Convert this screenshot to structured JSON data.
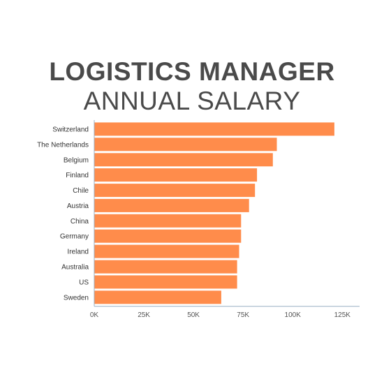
{
  "title": "LOGISTICS MANAGER",
  "subtitle": "ANNUAL SALARY",
  "colors": {
    "bar": "#FF8C4B",
    "axis": "#9ab0c4",
    "title": "#4a4a4a"
  },
  "chart_data": {
    "type": "bar",
    "orientation": "horizontal",
    "title": "LOGISTICS MANAGER ANNUAL SALARY",
    "categories": [
      "Switzerland",
      "The Netherlands",
      "Belgium",
      "Finland",
      "Chile",
      "Austria",
      "China",
      "Germany",
      "Ireland",
      "Australia",
      "US",
      "Sweden"
    ],
    "values": [
      121000,
      92000,
      90000,
      82000,
      81000,
      78000,
      74000,
      74000,
      73000,
      72000,
      72000,
      64000
    ],
    "xlim": [
      0,
      133000
    ],
    "xticks": [
      0,
      25000,
      50000,
      75000,
      100000,
      125000
    ],
    "xtick_labels": [
      "0K",
      "25K",
      "50K",
      "75K",
      "100K",
      "125K"
    ],
    "xlabel": "",
    "ylabel": "",
    "grid": false,
    "legend": "none"
  }
}
